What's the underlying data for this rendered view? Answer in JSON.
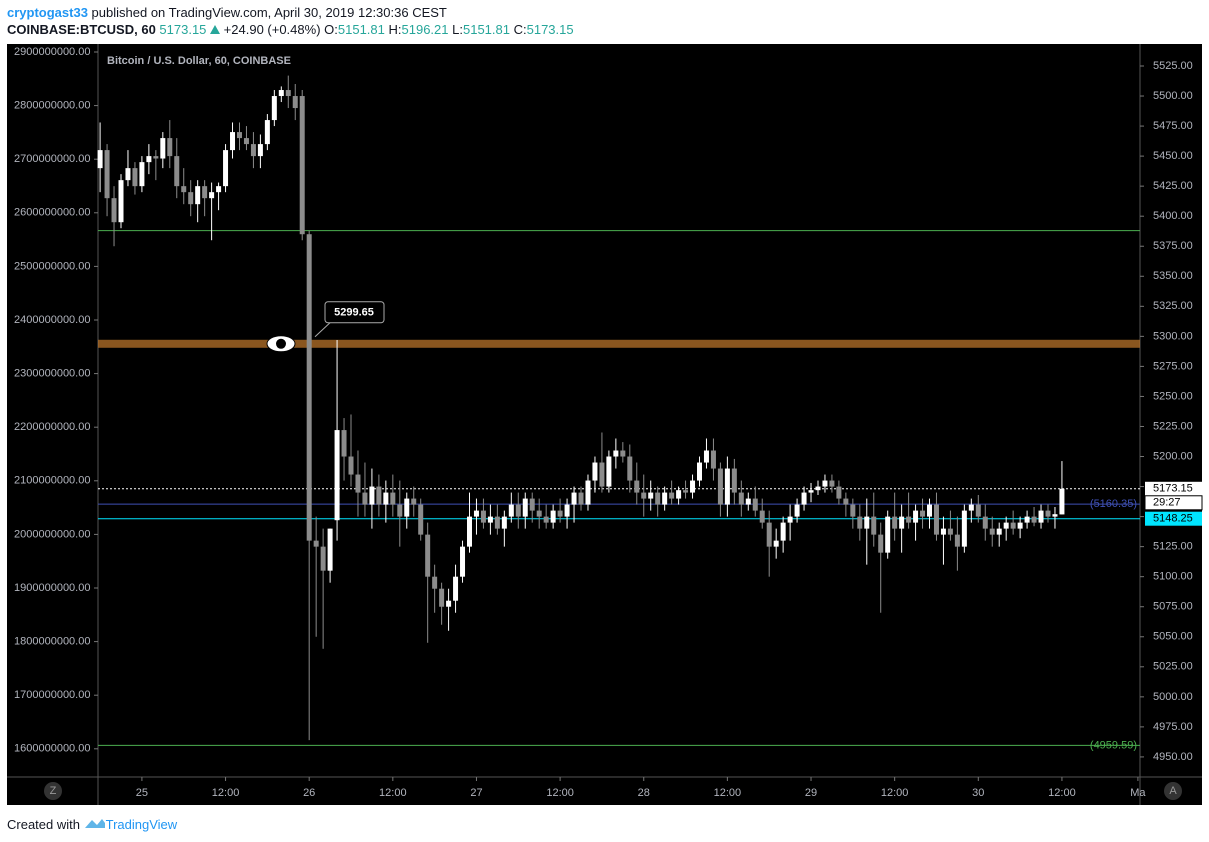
{
  "header": {
    "author": "cryptogast33",
    "published": "published on TradingView.com, April 30, 2019 12:30:36 CEST",
    "symbol": "COINBASE:BTCUSD, 60",
    "last": 5173.15,
    "change": "+24.90 (+0.48%)",
    "open_label": "O:",
    "open": 5151.81,
    "high_label": "H:",
    "high": 5196.21,
    "low_label": "L:",
    "low": 5151.81,
    "close_label": "C:",
    "close": 5173.15
  },
  "footer": {
    "text": "Created with",
    "brand": "TradingView"
  },
  "controls": {
    "left": "Z",
    "right": "A"
  },
  "chart_data": {
    "type": "candlestick",
    "title": "Bitcoin / U.S. Dollar, 60, COINBASE",
    "up_color": "#ffffff",
    "down_color": "#8c8c8c",
    "candles": [
      [
        5440,
        5478,
        5420,
        5455
      ],
      [
        5455,
        5460,
        5400,
        5415
      ],
      [
        5415,
        5425,
        5375,
        5395
      ],
      [
        5395,
        5435,
        5390,
        5430
      ],
      [
        5430,
        5455,
        5425,
        5440
      ],
      [
        5440,
        5445,
        5418,
        5425
      ],
      [
        5425,
        5450,
        5420,
        5445
      ],
      [
        5445,
        5460,
        5435,
        5450
      ],
      [
        5450,
        5455,
        5430,
        5448
      ],
      [
        5448,
        5470,
        5440,
        5465
      ],
      [
        5465,
        5480,
        5440,
        5450
      ],
      [
        5450,
        5465,
        5415,
        5425
      ],
      [
        5425,
        5440,
        5410,
        5420
      ],
      [
        5420,
        5430,
        5400,
        5410
      ],
      [
        5410,
        5430,
        5395,
        5425
      ],
      [
        5425,
        5430,
        5400,
        5415
      ],
      [
        5415,
        5428,
        5380,
        5420
      ],
      [
        5420,
        5428,
        5405,
        5425
      ],
      [
        5425,
        5460,
        5420,
        5455
      ],
      [
        5455,
        5478,
        5448,
        5470
      ],
      [
        5470,
        5478,
        5455,
        5465
      ],
      [
        5465,
        5475,
        5455,
        5460
      ],
      [
        5460,
        5470,
        5440,
        5450
      ],
      [
        5450,
        5468,
        5440,
        5460
      ],
      [
        5460,
        5485,
        5455,
        5480
      ],
      [
        5480,
        5505,
        5475,
        5500
      ],
      [
        5500,
        5508,
        5495,
        5505
      ],
      [
        5505,
        5517,
        5490,
        5500
      ],
      [
        5500,
        5510,
        5480,
        5490
      ],
      [
        5500,
        5505,
        5380,
        5385
      ],
      [
        5385,
        5388,
        4964,
        5130
      ],
      [
        5130,
        5150,
        5050,
        5125
      ],
      [
        5125,
        5140,
        5040,
        5105
      ],
      [
        5105,
        5140,
        5095,
        5140
      ],
      [
        5147,
        5297,
        5130,
        5222
      ],
      [
        5222,
        5232,
        5180,
        5200
      ],
      [
        5200,
        5235,
        5175,
        5185
      ],
      [
        5185,
        5205,
        5150,
        5170
      ],
      [
        5170,
        5195,
        5150,
        5160
      ],
      [
        5160,
        5190,
        5140,
        5175
      ],
      [
        5175,
        5185,
        5150,
        5160
      ],
      [
        5160,
        5180,
        5145,
        5170
      ],
      [
        5170,
        5185,
        5150,
        5160
      ],
      [
        5160,
        5180,
        5125,
        5150
      ],
      [
        5150,
        5170,
        5140,
        5165
      ],
      [
        5165,
        5175,
        5150,
        5160
      ],
      [
        5160,
        5165,
        5130,
        5135
      ],
      [
        5135,
        5145,
        5045,
        5100
      ],
      [
        5100,
        5110,
        5070,
        5090
      ],
      [
        5090,
        5095,
        5060,
        5075
      ],
      [
        5075,
        5090,
        5055,
        5080
      ],
      [
        5080,
        5110,
        5070,
        5100
      ],
      [
        5100,
        5130,
        5095,
        5125
      ],
      [
        5125,
        5170,
        5120,
        5150
      ],
      [
        5150,
        5165,
        5135,
        5155
      ],
      [
        5155,
        5165,
        5140,
        5145
      ],
      [
        5145,
        5160,
        5135,
        5150
      ],
      [
        5150,
        5160,
        5135,
        5140
      ],
      [
        5140,
        5155,
        5125,
        5150
      ],
      [
        5150,
        5170,
        5145,
        5160
      ],
      [
        5160,
        5170,
        5140,
        5150
      ],
      [
        5150,
        5170,
        5140,
        5165
      ],
      [
        5165,
        5170,
        5145,
        5155
      ],
      [
        5155,
        5165,
        5140,
        5150
      ],
      [
        5150,
        5160,
        5140,
        5145
      ],
      [
        5145,
        5160,
        5140,
        5155
      ],
      [
        5155,
        5165,
        5145,
        5150
      ],
      [
        5150,
        5165,
        5140,
        5160
      ],
      [
        5160,
        5175,
        5145,
        5170
      ],
      [
        5170,
        5175,
        5155,
        5160
      ],
      [
        5160,
        5185,
        5155,
        5180
      ],
      [
        5180,
        5200,
        5170,
        5195
      ],
      [
        5195,
        5220,
        5170,
        5175
      ],
      [
        5175,
        5205,
        5170,
        5200
      ],
      [
        5200,
        5215,
        5190,
        5205
      ],
      [
        5205,
        5212,
        5195,
        5200
      ],
      [
        5200,
        5210,
        5170,
        5180
      ],
      [
        5180,
        5195,
        5160,
        5170
      ],
      [
        5170,
        5185,
        5150,
        5165
      ],
      [
        5165,
        5180,
        5155,
        5170
      ],
      [
        5170,
        5175,
        5150,
        5160
      ],
      [
        5160,
        5175,
        5155,
        5170
      ],
      [
        5170,
        5180,
        5160,
        5165
      ],
      [
        5165,
        5175,
        5160,
        5172
      ],
      [
        5172,
        5180,
        5165,
        5170
      ],
      [
        5170,
        5185,
        5165,
        5180
      ],
      [
        5180,
        5200,
        5175,
        5195
      ],
      [
        5195,
        5215,
        5190,
        5205
      ],
      [
        5205,
        5215,
        5180,
        5190
      ],
      [
        5190,
        5195,
        5150,
        5160
      ],
      [
        5160,
        5200,
        5150,
        5190
      ],
      [
        5190,
        5198,
        5160,
        5170
      ],
      [
        5170,
        5180,
        5150,
        5160
      ],
      [
        5160,
        5170,
        5155,
        5165
      ],
      [
        5165,
        5175,
        5150,
        5155
      ],
      [
        5155,
        5165,
        5140,
        5145
      ],
      [
        5145,
        5155,
        5100,
        5125
      ],
      [
        5125,
        5140,
        5115,
        5130
      ],
      [
        5130,
        5150,
        5120,
        5145
      ],
      [
        5145,
        5160,
        5130,
        5150
      ],
      [
        5150,
        5165,
        5145,
        5160
      ],
      [
        5160,
        5175,
        5155,
        5170
      ],
      [
        5170,
        5178,
        5162,
        5172
      ],
      [
        5172,
        5180,
        5168,
        5175
      ],
      [
        5175,
        5185,
        5170,
        5180
      ],
      [
        5180,
        5185,
        5170,
        5175
      ],
      [
        5175,
        5180,
        5160,
        5165
      ],
      [
        5165,
        5170,
        5150,
        5160
      ],
      [
        5160,
        5165,
        5140,
        5150
      ],
      [
        5150,
        5160,
        5130,
        5140
      ],
      [
        5140,
        5165,
        5110,
        5150
      ],
      [
        5150,
        5170,
        5125,
        5135
      ],
      [
        5135,
        5145,
        5070,
        5120
      ],
      [
        5120,
        5155,
        5115,
        5150
      ],
      [
        5150,
        5170,
        5130,
        5140
      ],
      [
        5140,
        5160,
        5120,
        5150
      ],
      [
        5150,
        5170,
        5140,
        5145
      ],
      [
        5145,
        5160,
        5130,
        5155
      ],
      [
        5155,
        5165,
        5140,
        5150
      ],
      [
        5150,
        5165,
        5140,
        5160
      ],
      [
        5160,
        5170,
        5130,
        5135
      ],
      [
        5135,
        5150,
        5110,
        5140
      ],
      [
        5140,
        5155,
        5130,
        5135
      ],
      [
        5135,
        5150,
        5105,
        5125
      ],
      [
        5125,
        5160,
        5120,
        5155
      ],
      [
        5155,
        5165,
        5145,
        5160
      ],
      [
        5160,
        5168,
        5145,
        5150
      ],
      [
        5150,
        5160,
        5130,
        5140
      ],
      [
        5140,
        5150,
        5125,
        5135
      ],
      [
        5135,
        5145,
        5125,
        5140
      ],
      [
        5140,
        5150,
        5130,
        5145
      ],
      [
        5145,
        5155,
        5135,
        5140
      ],
      [
        5140,
        5150,
        5132,
        5145
      ],
      [
        5145,
        5155,
        5140,
        5150
      ],
      [
        5150,
        5158,
        5142,
        5145
      ],
      [
        5145,
        5160,
        5140,
        5155
      ],
      [
        5155,
        5160,
        5145,
        5150
      ],
      [
        5150,
        5158,
        5140,
        5152
      ],
      [
        5151.81,
        5196.21,
        5151.81,
        5173.15
      ]
    ],
    "xlim": [
      -0.3,
      149.2
    ],
    "xticks": [
      {
        "value": 6,
        "label": "25"
      },
      {
        "value": 18,
        "label": "12:00"
      },
      {
        "value": 30,
        "label": "26"
      },
      {
        "value": 42,
        "label": "12:00"
      },
      {
        "value": 54,
        "label": "27"
      },
      {
        "value": 66,
        "label": "12:00"
      },
      {
        "value": 78,
        "label": "28"
      },
      {
        "value": 90,
        "label": "12:00"
      },
      {
        "value": 102,
        "label": "29"
      },
      {
        "value": 114,
        "label": "12:00"
      },
      {
        "value": 126,
        "label": "30"
      },
      {
        "value": 138,
        "label": "12:00"
      },
      {
        "value": 148.9,
        "label": "Ma"
      }
    ],
    "ylim": [
      4933.3,
      5543.3
    ],
    "yticks": [
      {
        "value": 4950,
        "label": "4950.00"
      },
      {
        "value": 4975,
        "label": "4975.00"
      },
      {
        "value": 5000,
        "label": "5000.00"
      },
      {
        "value": 5025,
        "label": "5025.00"
      },
      {
        "value": 5050,
        "label": "5050.00"
      },
      {
        "value": 5075,
        "label": "5075.00"
      },
      {
        "value": 5100,
        "label": "5100.00"
      },
      {
        "value": 5125,
        "label": "5125.00"
      },
      {
        "value": 5150,
        "label": "5150.00"
      },
      {
        "value": 5175,
        "label": "5175.00"
      },
      {
        "value": 5200,
        "label": "5200.00"
      },
      {
        "value": 5225,
        "label": "5225.00"
      },
      {
        "value": 5250,
        "label": "5250.00"
      },
      {
        "value": 5275,
        "label": "5275.00"
      },
      {
        "value": 5300,
        "label": "5300.00"
      },
      {
        "value": 5325,
        "label": "5325.00"
      },
      {
        "value": 5350,
        "label": "5350.00"
      },
      {
        "value": 5375,
        "label": "5375.00"
      },
      {
        "value": 5400,
        "label": "5400.00"
      },
      {
        "value": 5425,
        "label": "5425.00"
      },
      {
        "value": 5450,
        "label": "5450.00"
      },
      {
        "value": 5475,
        "label": "5475.00"
      },
      {
        "value": 5500,
        "label": "5500.00"
      },
      {
        "value": 5525,
        "label": "5525.00"
      }
    ],
    "y2lim": [
      1547400000,
      2914900000
    ],
    "y2ticks": [
      {
        "value": 1600000000,
        "label": "1600000000.00"
      },
      {
        "value": 1700000000,
        "label": "1700000000.00"
      },
      {
        "value": 1800000000,
        "label": "1800000000.00"
      },
      {
        "value": 1900000000,
        "label": "1900000000.00"
      },
      {
        "value": 2000000000,
        "label": "2000000000.00"
      },
      {
        "value": 2100000000,
        "label": "2100000000.00"
      },
      {
        "value": 2200000000,
        "label": "2200000000.00"
      },
      {
        "value": 2300000000,
        "label": "2300000000.00"
      },
      {
        "value": 2400000000,
        "label": "2400000000.00"
      },
      {
        "value": 2500000000,
        "label": "2500000000.00"
      },
      {
        "value": 2600000000,
        "label": "2600000000.00"
      },
      {
        "value": 2700000000,
        "label": "2700000000.00"
      },
      {
        "value": 2800000000,
        "label": "2800000000.00"
      },
      {
        "value": 2900000000,
        "label": "2900000000.00"
      }
    ],
    "levels": [
      {
        "value": 5388,
        "color": "#4caf50",
        "style": "line"
      },
      {
        "value": 5299.65,
        "color": "#b8732a",
        "style": "band",
        "label": "5299.65"
      },
      {
        "value": 5173.15,
        "color": "#ffffff",
        "style": "dotted-box",
        "label": "5173.15"
      },
      {
        "value": 5160.35,
        "color": "#3f51b5",
        "style": "text",
        "label": "(5160.35)"
      },
      {
        "value": 5148.25,
        "color": "#00e5ff",
        "style": "box",
        "label": "5148.25"
      },
      {
        "value": 4959.59,
        "color": "#4caf50",
        "style": "text",
        "label": "(4959.59)"
      }
    ],
    "countdown": "29:27"
  }
}
